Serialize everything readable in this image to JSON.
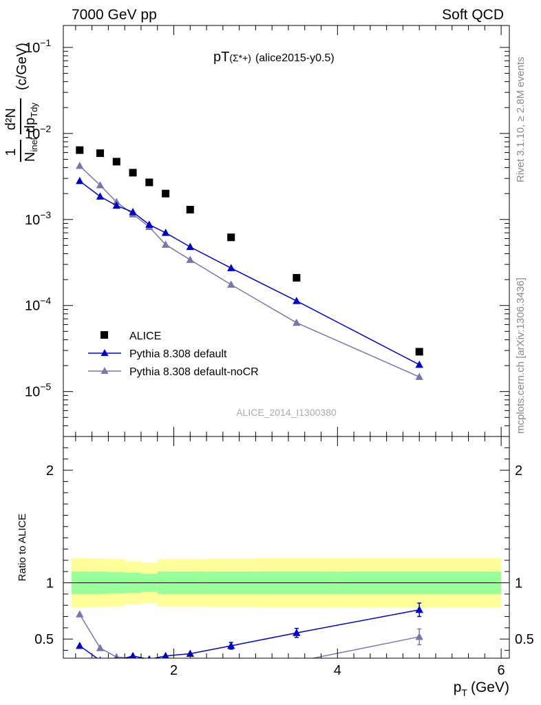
{
  "header": {
    "left": "7000 GeV pp",
    "right": "Soft QCD"
  },
  "side_labels": {
    "rivet": "Rivet 3.1.10, ≥ 2.8M events",
    "mcplots": "mcplots.cern.ch [arXiv:1306.3436]"
  },
  "colors": {
    "alice": "#000000",
    "default": "#0000cc",
    "nocr": "#7777aa",
    "band_inner": "#99ff99",
    "band_outer": "#ffff99"
  },
  "chart_data": [
    {
      "type": "scatter",
      "title": "pT(Σ*+) (alice2015-y0.5)",
      "title_main": "pT",
      "title_paren": "(Σ*+)",
      "title_tail": "(alice2015-y0.5)",
      "analysis_id": "ALICE_2014_I1300380",
      "ylabel_num": "d²N",
      "ylabel_den": "dp",
      "ylabel_den_sub": "Tdy",
      "ylabel_prefix_num": "1",
      "ylabel_prefix_den": "N",
      "ylabel_prefix_den_sub": "inel",
      "ylabel_unit": "(c/GeV)",
      "yscale": "log",
      "xlim": [
        0.65,
        6.1
      ],
      "ylim": [
        3e-06,
        0.18
      ],
      "yticks": [
        {
          "value": 1e-05,
          "base": "10",
          "exp": "−5"
        },
        {
          "value": 0.0001,
          "base": "10",
          "exp": "−4"
        },
        {
          "value": 0.001,
          "base": "10",
          "exp": "−3"
        },
        {
          "value": 0.01,
          "base": "10",
          "exp": "−2"
        },
        {
          "value": 0.1,
          "base": "10",
          "exp": "−1"
        }
      ],
      "legend_position": "bottom-left",
      "series": [
        {
          "name": "ALICE",
          "marker": "square",
          "x": [
            0.85,
            1.1,
            1.3,
            1.5,
            1.7,
            1.9,
            2.2,
            2.7,
            3.5,
            5.0
          ],
          "y": [
            0.0064,
            0.0059,
            0.0047,
            0.0035,
            0.0027,
            0.002,
            0.0013,
            0.00062,
            0.00021,
            2.9e-05
          ]
        },
        {
          "name": "Pythia 8.308 default",
          "marker": "triangle",
          "x": [
            0.85,
            1.1,
            1.3,
            1.5,
            1.7,
            1.9,
            2.2,
            2.7,
            3.5,
            5.0
          ],
          "y": [
            0.0028,
            0.00185,
            0.00145,
            0.00122,
            0.00087,
            0.0007,
            0.00048,
            0.000272,
            0.000113,
            2.05e-05
          ]
        },
        {
          "name": "Pythia 8.308 default-noCR",
          "marker": "triangle",
          "x": [
            0.85,
            1.1,
            1.3,
            1.5,
            1.7,
            1.9,
            2.2,
            2.7,
            3.5,
            5.0
          ],
          "y": [
            0.0042,
            0.0025,
            0.0016,
            0.00115,
            0.00082,
            0.00051,
            0.00034,
            0.000175,
            6.3e-05,
            1.48e-05
          ]
        }
      ]
    },
    {
      "type": "line",
      "ylabel": "Ratio to ALICE",
      "xlabel_main": "p",
      "xlabel_sub": "T",
      "xlabel_unit": "(GeV)",
      "xlim": [
        0.65,
        6.1
      ],
      "ylim": [
        0.33,
        2.3
      ],
      "xticks": [
        2,
        4,
        6
      ],
      "yticks": [
        0.5,
        1,
        2
      ],
      "bands": {
        "edges": [
          0.75,
          1.0,
          1.2,
          1.4,
          1.6,
          1.8,
          2.0,
          2.4,
          3.0,
          4.0,
          6.0
        ],
        "inner_lo": [
          0.9,
          0.9,
          0.905,
          0.91,
          0.92,
          0.9,
          0.9,
          0.9,
          0.9,
          0.9
        ],
        "inner_hi": [
          1.1,
          1.1,
          1.095,
          1.09,
          1.08,
          1.1,
          1.1,
          1.1,
          1.1,
          1.1
        ],
        "outer_lo": [
          0.78,
          0.785,
          0.79,
          0.81,
          0.82,
          0.79,
          0.79,
          0.785,
          0.78,
          0.78
        ],
        "outer_hi": [
          1.22,
          1.215,
          1.21,
          1.19,
          1.18,
          1.21,
          1.21,
          1.215,
          1.22,
          1.22
        ]
      },
      "series": [
        {
          "name": "Pythia 8.308 default",
          "x": [
            0.85,
            1.1,
            1.3,
            1.5,
            1.7,
            1.9,
            2.2,
            2.7,
            3.5,
            5.0
          ],
          "y": [
            0.44,
            0.31,
            0.31,
            0.35,
            0.32,
            0.35,
            0.37,
            0.44,
            0.555,
            0.76
          ],
          "err": [
            0.0,
            0.0,
            0.0,
            0.0,
            0.0,
            0.0,
            0.0,
            0.03,
            0.04,
            0.06
          ]
        },
        {
          "name": "Pythia 8.308 default-noCR",
          "x": [
            0.85,
            1.1,
            1.3,
            1.5,
            1.7,
            1.9,
            2.2,
            2.7,
            3.5,
            5.0
          ],
          "y": [
            0.72,
            0.42,
            0.34,
            0.33,
            0.3,
            0.25,
            0.26,
            0.28,
            0.3,
            0.52
          ],
          "err": [
            0.0,
            0.0,
            0.0,
            0.0,
            0.0,
            0.0,
            0.0,
            0.0,
            0.0,
            0.07
          ]
        }
      ]
    }
  ]
}
